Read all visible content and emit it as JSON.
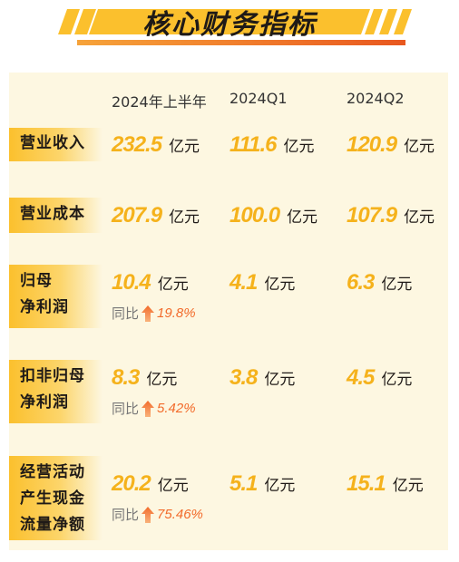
{
  "title": "核心财务指标",
  "columns": [
    "2024年上半年",
    "2024Q1",
    "2024Q2"
  ],
  "unit": "亿元",
  "yoy_label": "同比",
  "rows": [
    {
      "label_lines": [
        "营业收入"
      ],
      "values": [
        "232.5",
        "111.6",
        "120.9"
      ]
    },
    {
      "label_lines": [
        "营业成本"
      ],
      "values": [
        "207.9",
        "100.0",
        "107.9"
      ]
    },
    {
      "label_lines": [
        "归母",
        "净利润"
      ],
      "values": [
        "10.4",
        "4.1",
        "6.3"
      ],
      "yoy": "19.8%"
    },
    {
      "label_lines": [
        "扣非归母",
        "净利润"
      ],
      "values": [
        "8.3",
        "3.8",
        "4.5"
      ],
      "yoy": "5.42%"
    },
    {
      "label_lines": [
        "经营活动",
        "产生现金",
        "流量净额"
      ],
      "values": [
        "20.2",
        "5.1",
        "15.1"
      ],
      "yoy": "75.46%"
    }
  ],
  "colors": {
    "accent_yellow": "#f5b21c",
    "accent_orange": "#f26b2b",
    "panel_bg": "#fdf7e1"
  }
}
